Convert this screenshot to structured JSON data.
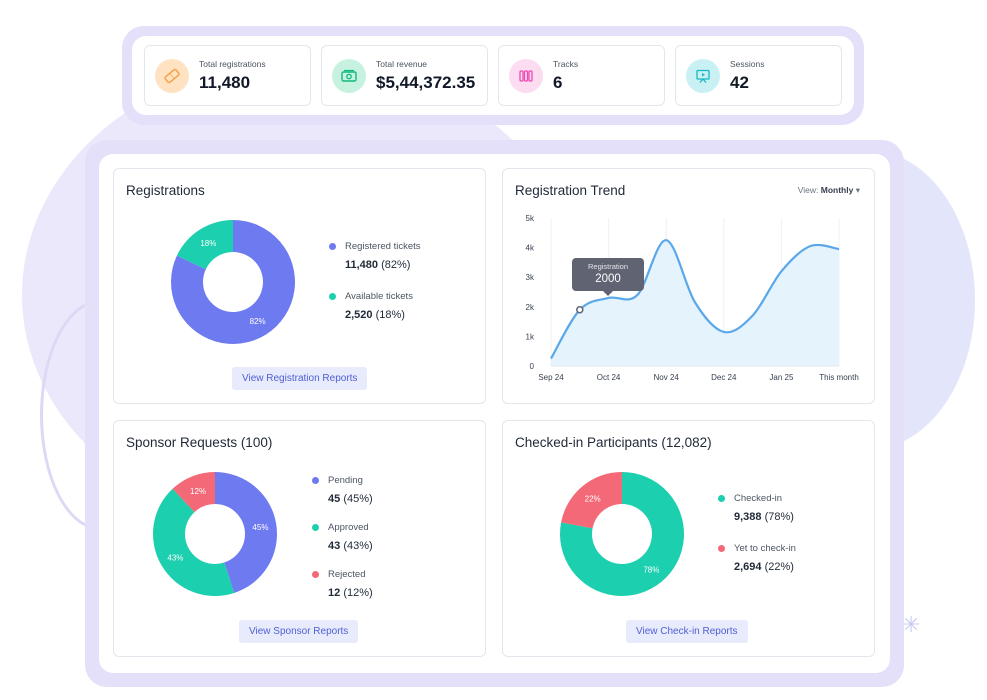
{
  "colors": {
    "primary": "#6e7af0",
    "teal": "#1ccfae",
    "red": "#f36978",
    "frame": "#e4e0fa",
    "area": "#e5f3fd",
    "line": "#5aa7ea"
  },
  "stats": [
    {
      "label": "Total registrations",
      "value": "11,480",
      "icon": "ticket-icon",
      "icon_bg": "#ffe2c2",
      "icon_color": "#f59e42"
    },
    {
      "label": "Total revenue",
      "value": "$5,44,372.35",
      "icon": "money-icon",
      "icon_bg": "#c8f2e0",
      "icon_color": "#10b981"
    },
    {
      "label": "Tracks",
      "value": "6",
      "icon": "tracks-icon",
      "icon_bg": "#fbdcf1",
      "icon_color": "#ec4bb0"
    },
    {
      "label": "Sessions",
      "value": "42",
      "icon": "presentation-icon",
      "icon_bg": "#c9f1f4",
      "icon_color": "#14b8c4"
    }
  ],
  "registrations": {
    "title": "Registrations",
    "segments": [
      {
        "label": "Registered tickets",
        "value": "11,480",
        "pct": "(82%)",
        "slice_label": "82%",
        "share": 82,
        "color": "#6e7af0"
      },
      {
        "label": "Available tickets",
        "value": "2,520",
        "pct": "(18%)",
        "slice_label": "18%",
        "share": 18,
        "color": "#1ccfae"
      }
    ],
    "button": "View Registration Reports"
  },
  "trend": {
    "title": "Registration Trend",
    "view_label": "View:",
    "view_value": "Monthly",
    "view_icon": "caret-down-icon",
    "tooltip_label": "Registration",
    "tooltip_value": "2000"
  },
  "chart_data": {
    "type": "area",
    "x": [
      "Sep 24",
      "Oct 24",
      "Nov 24",
      "Dec 24",
      "Jan 25",
      "This month"
    ],
    "y_ticks": [
      "0",
      "1k",
      "2k",
      "3k",
      "4k",
      "5k"
    ],
    "ylim": [
      0,
      5000
    ],
    "points": [
      {
        "x": 0,
        "y": 250
      },
      {
        "x": 0.5,
        "y": 1900
      },
      {
        "x": 1,
        "y": 2300
      },
      {
        "x": 1.5,
        "y": 2400
      },
      {
        "x": 2,
        "y": 4250
      },
      {
        "x": 2.5,
        "y": 2150
      },
      {
        "x": 3,
        "y": 1150
      },
      {
        "x": 3.5,
        "y": 1700
      },
      {
        "x": 4,
        "y": 3200
      },
      {
        "x": 4.5,
        "y": 4050
      },
      {
        "x": 5,
        "y": 3950
      }
    ],
    "grid": true
  },
  "sponsors": {
    "title": "Sponsor Requests (100)",
    "segments": [
      {
        "label": "Pending",
        "value": "45",
        "pct": "(45%)",
        "slice_label": "45%",
        "share": 45,
        "color": "#6e7af0"
      },
      {
        "label": "Approved",
        "value": "43",
        "pct": "(43%)",
        "slice_label": "43%",
        "share": 43,
        "color": "#1ccfae"
      },
      {
        "label": "Rejected",
        "value": "12",
        "pct": "(12%)",
        "slice_label": "12%",
        "share": 12,
        "color": "#f36978"
      }
    ],
    "button": "View Sponsor Reports"
  },
  "checkin": {
    "title": "Checked-in Participants (12,082)",
    "segments": [
      {
        "label": "Checked-in",
        "value": "9,388",
        "pct": "(78%)",
        "slice_label": "78%",
        "share": 78,
        "color": "#1ccfae"
      },
      {
        "label": "Yet to check-in",
        "value": "2,694",
        "pct": "(22%)",
        "slice_label": "22%",
        "share": 22,
        "color": "#f36978"
      }
    ],
    "button": "View Check-in Reports"
  }
}
